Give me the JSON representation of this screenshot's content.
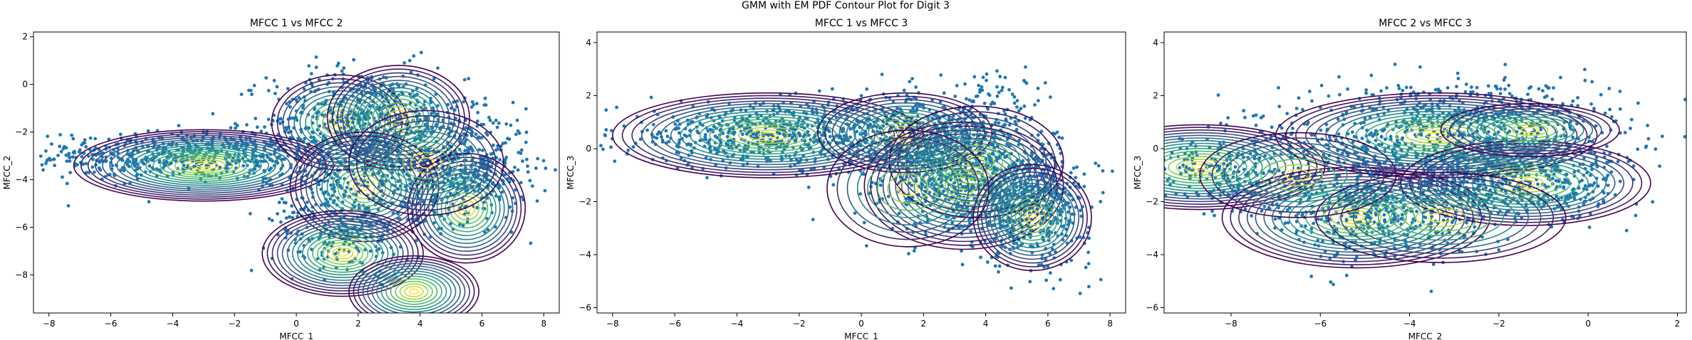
{
  "figure": {
    "suptitle": "GMM with EM PDF Contour Plot for Digit 3"
  },
  "colors": {
    "scatter": "#1f77b4",
    "contour_low": "#440154",
    "contour_mid": "#21918c",
    "contour_high": "#fde725"
  },
  "chart_data": [
    {
      "type": "scatter",
      "overlay": "contour",
      "title": "MFCC 1 vs MFCC 2",
      "xlabel": "MFCC_1",
      "ylabel": "MFCC_2",
      "xlim": [
        -8.5,
        8.5
      ],
      "ylim": [
        -9.6,
        2.2
      ],
      "xticks": [
        -8,
        -6,
        -4,
        -2,
        0,
        2,
        4,
        6,
        8
      ],
      "yticks": [
        -8,
        -6,
        -4,
        -2,
        0,
        2
      ],
      "components": [
        {
          "center": [
            -3.0,
            -3.4
          ],
          "radius": [
            4.2,
            1.5
          ],
          "levels": 18
        },
        {
          "center": [
            1.4,
            -1.6
          ],
          "radius": [
            2.2,
            2.0
          ],
          "levels": 12
        },
        {
          "center": [
            3.3,
            -1.4
          ],
          "radius": [
            2.3,
            2.2
          ],
          "levels": 14
        },
        {
          "center": [
            2.2,
            -4.3
          ],
          "radius": [
            2.4,
            2.3
          ],
          "levels": 14
        },
        {
          "center": [
            5.5,
            -5.2
          ],
          "radius": [
            1.9,
            2.3
          ],
          "levels": 14
        },
        {
          "center": [
            4.2,
            -3.3
          ],
          "radius": [
            2.5,
            2.2
          ],
          "levels": 10
        },
        {
          "center": [
            1.5,
            -7.1
          ],
          "radius": [
            2.6,
            1.8
          ],
          "levels": 16
        },
        {
          "center": [
            3.8,
            -8.7
          ],
          "radius": [
            2.1,
            1.5
          ],
          "levels": 14
        }
      ],
      "scatter_clusters": [
        {
          "center": [
            -3.5,
            -3.0
          ],
          "spread": [
            2.5,
            0.5
          ],
          "n": 650
        },
        {
          "center": [
            2.3,
            -1.5
          ],
          "spread": [
            1.6,
            1.1
          ],
          "n": 650
        },
        {
          "center": [
            5.5,
            -3.5
          ],
          "spread": [
            1.0,
            1.1
          ],
          "n": 450
        },
        {
          "center": [
            2.0,
            -4.6
          ],
          "spread": [
            1.5,
            1.0
          ],
          "n": 350
        },
        {
          "center": [
            1.5,
            -6.6
          ],
          "spread": [
            1.1,
            0.7
          ],
          "n": 120
        }
      ]
    },
    {
      "type": "scatter",
      "overlay": "contour",
      "title": "MFCC 1 vs MFCC 3",
      "xlabel": "MFCC_1",
      "ylabel": "MFCC_3",
      "xlim": [
        -8.5,
        8.5
      ],
      "ylim": [
        -6.2,
        4.4
      ],
      "xticks": [
        -8,
        -6,
        -4,
        -2,
        0,
        2,
        4,
        6,
        8
      ],
      "yticks": [
        -6,
        -4,
        -2,
        0,
        2,
        4
      ],
      "components": [
        {
          "center": [
            -3.0,
            0.5
          ],
          "radius": [
            5.0,
            1.6
          ],
          "levels": 16
        },
        {
          "center": [
            1.4,
            0.6
          ],
          "radius": [
            2.8,
            1.5
          ],
          "levels": 12
        },
        {
          "center": [
            3.3,
            -1.4
          ],
          "radius": [
            3.2,
            2.4
          ],
          "levels": 16
        },
        {
          "center": [
            3.7,
            -0.5
          ],
          "radius": [
            2.8,
            2.1
          ],
          "levels": 10
        },
        {
          "center": [
            5.5,
            -2.6
          ],
          "radius": [
            1.9,
            2.0
          ],
          "levels": 14
        },
        {
          "center": [
            1.5,
            -1.5
          ],
          "radius": [
            2.6,
            2.2
          ],
          "levels": 8
        }
      ],
      "scatter_clusters": [
        {
          "center": [
            -3.0,
            0.5
          ],
          "spread": [
            2.4,
            0.6
          ],
          "n": 650
        },
        {
          "center": [
            2.0,
            0.4
          ],
          "spread": [
            1.5,
            0.8
          ],
          "n": 500
        },
        {
          "center": [
            3.5,
            -1.2
          ],
          "spread": [
            1.4,
            1.0
          ],
          "n": 650
        },
        {
          "center": [
            5.6,
            -2.2
          ],
          "spread": [
            0.9,
            1.1
          ],
          "n": 450
        },
        {
          "center": [
            4.6,
            1.8
          ],
          "spread": [
            0.6,
            0.6
          ],
          "n": 60
        }
      ]
    },
    {
      "type": "scatter",
      "overlay": "contour",
      "title": "MFCC 2 vs MFCC 3",
      "xlabel": "MFCC_2",
      "ylabel": "MFCC_3",
      "xlim": [
        -9.5,
        2.2
      ],
      "ylim": [
        -6.2,
        4.4
      ],
      "xticks": [
        -8,
        -6,
        -4,
        -2,
        0,
        2
      ],
      "yticks": [
        -6,
        -4,
        -2,
        0,
        2,
        4
      ],
      "components": [
        {
          "center": [
            -8.7,
            -0.7
          ],
          "radius": [
            2.8,
            1.6
          ],
          "levels": 16
        },
        {
          "center": [
            -5.2,
            -2.6
          ],
          "radius": [
            3.0,
            1.9
          ],
          "levels": 16
        },
        {
          "center": [
            -3.4,
            0.5
          ],
          "radius": [
            3.6,
            1.6
          ],
          "levels": 16
        },
        {
          "center": [
            -1.4,
            -1.3
          ],
          "radius": [
            2.8,
            1.6
          ],
          "levels": 14
        },
        {
          "center": [
            -1.3,
            0.7
          ],
          "radius": [
            2.0,
            1.0
          ],
          "levels": 10
        },
        {
          "center": [
            -3.3,
            -2.6
          ],
          "radius": [
            2.8,
            1.7
          ],
          "levels": 10
        },
        {
          "center": [
            -6.5,
            -1.0
          ],
          "radius": [
            2.2,
            1.6
          ],
          "levels": 8
        }
      ],
      "scatter_clusters": [
        {
          "center": [
            -3.3,
            0.2
          ],
          "spread": [
            2.0,
            0.9
          ],
          "n": 800
        },
        {
          "center": [
            -4.8,
            -2.3
          ],
          "spread": [
            1.3,
            0.9
          ],
          "n": 550
        },
        {
          "center": [
            -1.5,
            -1.4
          ],
          "spread": [
            1.2,
            0.7
          ],
          "n": 450
        },
        {
          "center": [
            -8.3,
            -0.8
          ],
          "spread": [
            0.7,
            0.6
          ],
          "n": 200
        },
        {
          "center": [
            -2.5,
            1.6
          ],
          "spread": [
            1.5,
            0.5
          ],
          "n": 200
        }
      ]
    }
  ]
}
